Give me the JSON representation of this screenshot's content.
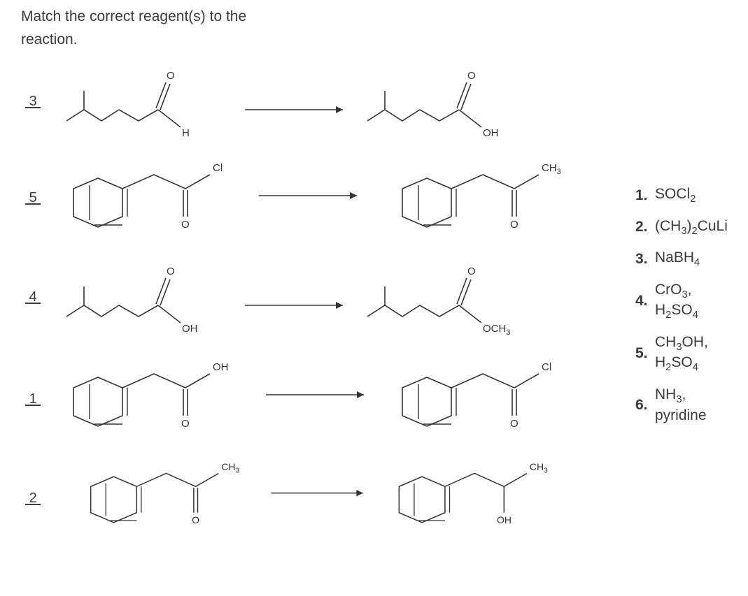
{
  "prompt": "Match the correct reagent(s) to the reaction.",
  "blanks": {
    "r1": "3",
    "r2": "5",
    "r3": "4",
    "r4": "1",
    "r5": "2"
  },
  "reagents": [
    {
      "num": "1.",
      "html": "SOCl<sub>2</sub>"
    },
    {
      "num": "2.",
      "html": "(CH<sub>3</sub>)<sub>2</sub>CuLi"
    },
    {
      "num": "3.",
      "html": "NaBH<sub>4</sub>"
    },
    {
      "num": "4.",
      "html": "CrO<sub>3</sub>,<br>H<sub>2</sub>SO<sub>4</sub>"
    },
    {
      "num": "5.",
      "html": "CH<sub>3</sub>OH,<br>H<sub>2</sub>SO<sub>4</sub>"
    },
    {
      "num": "6.",
      "html": "NH<sub>3</sub>,<br>pyridine"
    }
  ],
  "reactions": {
    "r1": {
      "left_label": "H",
      "right_label": "OH"
    },
    "r2": {
      "left_label": "Cl",
      "right_label": "CH",
      "right_sub": "3"
    },
    "r3": {
      "left_label": "OH",
      "right_label": "OCH",
      "right_sub": "3"
    },
    "r4": {
      "left_label": "OH",
      "right_label": "Cl"
    },
    "r5": {
      "left_label": "CH",
      "left_sub": "3",
      "right_label": "CH",
      "right_sub": "3",
      "right_oh": "OH"
    }
  },
  "colors": {
    "text": "#3b3b3b",
    "stroke": "#333333",
    "bg": "#ffffff"
  }
}
